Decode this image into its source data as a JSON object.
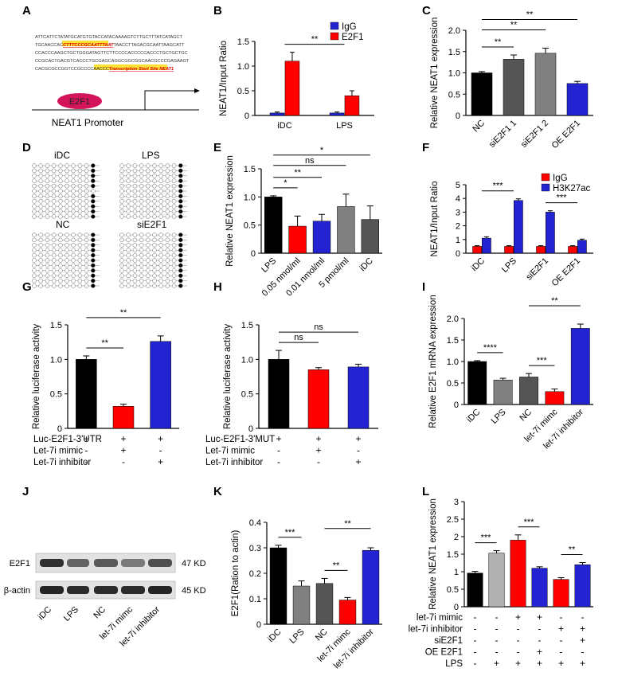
{
  "colors": {
    "black": "#000000",
    "red": "#ff0000",
    "blue": "#2323d2",
    "gray": "#808080",
    "dgray": "#555555",
    "lgray": "#b0b0b0",
    "promoter": "#d4145a",
    "highlight": "#ffe135"
  },
  "panelA": {
    "seq": [
      "ATTCATTCTATATGCATGTGTACCATACAAAAGTCTTGCTTTATCATAGCT",
      "TGCAACCAC|CTTTCCCGCAATTTAAT|TAACCTTAGACGCAATTAAGCATT",
      "CCACCCAAGCTGCTGGGATAGTTCTTCCCCACCCCCACCCTGCTGCTGC",
      "CCGCACTGACGTCACCCTGCGAGCAGGCGGCGGCAACGCCCGAGAAGT",
      "CACGCGCCGGTCCGCCCCAACCC|Transcription Start Site NEAT1|"
    ],
    "tf_label": "E2F1",
    "promoter_label": "NEAT1 Promoter"
  },
  "panelD": {
    "labels": [
      "iDC",
      "LPS",
      "NC",
      "siE2F1"
    ]
  },
  "panelJ": {
    "bands": [
      {
        "name": "E2F1",
        "size": "47 KD"
      },
      {
        "name": "β-actin",
        "size": "45 KD"
      }
    ],
    "lanes": [
      "iDC",
      "LPS",
      "NC",
      "let-7i mimc",
      "let-7i inhibitor"
    ]
  },
  "chart_data": [
    {
      "id": "A",
      "type": "diagram",
      "title": "A"
    },
    {
      "id": "B",
      "type": "bar",
      "ylabel": "NEAT1/Input Ratio",
      "categories": [
        "iDC",
        "LPS"
      ],
      "ylim": [
        0,
        1.5
      ],
      "ticks": [
        0,
        0.5,
        1.0,
        1.5
      ],
      "series": [
        {
          "name": "IgG",
          "color": "#2323d2",
          "values": [
            0.05,
            0.05
          ],
          "errors": [
            0.02,
            0.02
          ]
        },
        {
          "name": "E2F1",
          "color": "#ff0000",
          "values": [
            1.1,
            0.4
          ],
          "errors": [
            0.18,
            0.1
          ]
        }
      ],
      "sig": [
        {
          "from": 0,
          "to": 1,
          "label": "**"
        }
      ]
    },
    {
      "id": "C",
      "type": "bar",
      "ylabel": "Relative NEAT1 expression",
      "categories": [
        "NC",
        "siE2F1 1",
        "siE2F1 2",
        "OE E2F1"
      ],
      "ylim": [
        0,
        2.0
      ],
      "ticks": [
        0,
        0.5,
        1.0,
        1.5,
        2.0
      ],
      "values": [
        1.0,
        1.32,
        1.46,
        0.75
      ],
      "errors": [
        0.03,
        0.1,
        0.12,
        0.05
      ],
      "colors": [
        "#000000",
        "#555555",
        "#808080",
        "#2323d2"
      ],
      "sig": [
        {
          "from": 0,
          "to": 1,
          "label": "**"
        },
        {
          "from": 0,
          "to": 2,
          "label": "**"
        },
        {
          "from": 0,
          "to": 3,
          "label": "**"
        }
      ]
    },
    {
      "id": "D",
      "type": "methylation",
      "title": "D"
    },
    {
      "id": "E",
      "type": "bar",
      "ylabel": "Relative NEAT1 expression",
      "categories": [
        "LPS",
        "0.05 nmol/ml",
        "0.01 nmol/ml",
        "5 pmol/ml",
        "iDC"
      ],
      "ylim": [
        0,
        1.5
      ],
      "ticks": [
        0,
        0.5,
        1.0,
        1.5
      ],
      "values": [
        1.0,
        0.48,
        0.57,
        0.83,
        0.6
      ],
      "errors": [
        0.02,
        0.18,
        0.12,
        0.22,
        0.24
      ],
      "colors": [
        "#000000",
        "#ff0000",
        "#2323d2",
        "#808080",
        "#555555"
      ],
      "sig": [
        {
          "from": 0,
          "to": 1,
          "label": "*"
        },
        {
          "from": 0,
          "to": 2,
          "label": "**"
        },
        {
          "from": 0,
          "to": 3,
          "label": "ns"
        },
        {
          "from": 0,
          "to": 4,
          "label": "*"
        }
      ]
    },
    {
      "id": "F",
      "type": "bar",
      "ylabel": "NEAT1/Input Ratio",
      "categories": [
        "iDC",
        "LPS",
        "siE2F1",
        "OE E2F1"
      ],
      "ylim": [
        0,
        5
      ],
      "ticks": [
        0,
        1,
        2,
        3,
        4,
        5
      ],
      "series": [
        {
          "name": "IgG",
          "color": "#ff0000",
          "values": [
            0.5,
            0.5,
            0.5,
            0.5
          ],
          "errors": [
            0.05,
            0.05,
            0.05,
            0.05
          ]
        },
        {
          "name": "H3K27ac",
          "color": "#2323d2",
          "values": [
            1.1,
            3.85,
            3.0,
            0.95
          ],
          "errors": [
            0.1,
            0.12,
            0.1,
            0.08
          ]
        }
      ],
      "sig": [
        {
          "from": 0,
          "to": 1,
          "label": "***"
        },
        {
          "from": 2,
          "to": 3,
          "label": "***"
        }
      ]
    },
    {
      "id": "G",
      "type": "bar",
      "ylabel": "Relative luciferase activity",
      "categories": [
        "1",
        "2",
        "3"
      ],
      "ylim": [
        0,
        1.5
      ],
      "ticks": [
        0,
        0.5,
        1.0,
        1.5
      ],
      "values": [
        1.0,
        0.32,
        1.26
      ],
      "errors": [
        0.05,
        0.03,
        0.08
      ],
      "colors": [
        "#000000",
        "#ff0000",
        "#2323d2"
      ],
      "sig": [
        {
          "from": 0,
          "to": 1,
          "label": "**"
        },
        {
          "from": 0,
          "to": 2,
          "label": "**"
        }
      ],
      "table": {
        "rows": [
          {
            "label": "Luc-E2F1-3'UTR",
            "vals": [
              "+",
              "+",
              "+"
            ]
          },
          {
            "label": "Let-7i mimic",
            "vals": [
              "-",
              "+",
              "-"
            ]
          },
          {
            "label": "Let-7i inhibitor",
            "vals": [
              "-",
              "-",
              "+"
            ]
          }
        ]
      }
    },
    {
      "id": "H",
      "type": "bar",
      "ylabel": "Relative luciferase activity",
      "categories": [
        "1",
        "2",
        "3"
      ],
      "ylim": [
        0,
        1.5
      ],
      "ticks": [
        0,
        0.5,
        1.0,
        1.5
      ],
      "values": [
        1.0,
        0.85,
        0.89
      ],
      "errors": [
        0.13,
        0.03,
        0.04
      ],
      "colors": [
        "#000000",
        "#ff0000",
        "#2323d2"
      ],
      "sig": [
        {
          "from": 0,
          "to": 1,
          "label": "ns"
        },
        {
          "from": 0,
          "to": 2,
          "label": "ns"
        }
      ],
      "table": {
        "rows": [
          {
            "label": "Luc-E2F1-3'MUT",
            "vals": [
              "+",
              "+",
              "+"
            ]
          },
          {
            "label": "Let-7i mimic",
            "vals": [
              "-",
              "+",
              "-"
            ]
          },
          {
            "label": "Let-7i inhibitor",
            "vals": [
              "-",
              "-",
              "+"
            ]
          }
        ]
      }
    },
    {
      "id": "I",
      "type": "bar",
      "ylabel": "Relative E2F1 mRNA expression",
      "categories": [
        "iDC",
        "LPS",
        "NC",
        "let-7i mimc",
        "let-7i inhibitor"
      ],
      "ylim": [
        0,
        2.0
      ],
      "ticks": [
        0,
        0.5,
        1.0,
        1.5,
        2.0
      ],
      "values": [
        1.0,
        0.57,
        0.64,
        0.3,
        1.77
      ],
      "errors": [
        0.02,
        0.04,
        0.08,
        0.06,
        0.1
      ],
      "colors": [
        "#000000",
        "#808080",
        "#555555",
        "#ff0000",
        "#2323d2"
      ],
      "sig": [
        {
          "from": 0,
          "to": 1,
          "label": "****"
        },
        {
          "from": 2,
          "to": 3,
          "label": "***"
        },
        {
          "from": 2,
          "to": 4,
          "label": "**"
        }
      ]
    },
    {
      "id": "J",
      "type": "blot",
      "title": "J"
    },
    {
      "id": "K",
      "type": "bar",
      "ylabel": "E2F1(Ration to actin)",
      "categories": [
        "iDC",
        "LPS",
        "NC",
        "let-7i mimc",
        "let-7i inhibitor"
      ],
      "ylim": [
        0,
        0.4
      ],
      "ticks": [
        0,
        0.1,
        0.2,
        0.3,
        0.4
      ],
      "values": [
        0.3,
        0.15,
        0.16,
        0.095,
        0.29
      ],
      "errors": [
        0.01,
        0.02,
        0.02,
        0.01,
        0.01
      ],
      "colors": [
        "#000000",
        "#808080",
        "#555555",
        "#ff0000",
        "#2323d2"
      ],
      "sig": [
        {
          "from": 0,
          "to": 1,
          "label": "***"
        },
        {
          "from": 2,
          "to": 3,
          "label": "**"
        },
        {
          "from": 2,
          "to": 4,
          "label": "**"
        }
      ]
    },
    {
      "id": "L",
      "type": "bar",
      "ylabel": "Relative NEAT1 expression",
      "categories": [
        "1",
        "2",
        "3",
        "4",
        "5",
        "6"
      ],
      "ylim": [
        0,
        3.0
      ],
      "ticks": [
        0,
        0.5,
        1.0,
        1.5,
        2.0,
        2.5,
        3.0
      ],
      "values": [
        0.96,
        1.53,
        1.9,
        1.1,
        0.78,
        1.2
      ],
      "errors": [
        0.05,
        0.07,
        0.15,
        0.04,
        0.05,
        0.06
      ],
      "colors": [
        "#000000",
        "#b0b0b0",
        "#ff0000",
        "#2323d2",
        "#ff0000",
        "#2323d2"
      ],
      "sig": [
        {
          "from": 0,
          "to": 1,
          "label": "***"
        },
        {
          "from": 2,
          "to": 3,
          "label": "***"
        },
        {
          "from": 4,
          "to": 5,
          "label": "**"
        }
      ],
      "table": {
        "rows": [
          {
            "label": "let-7i mimic",
            "vals": [
              "-",
              "-",
              "+",
              "+",
              "-",
              "-"
            ]
          },
          {
            "label": "let-7i inhibitor",
            "vals": [
              "-",
              "-",
              "-",
              "-",
              "+",
              "+"
            ]
          },
          {
            "label": "siE2F1",
            "vals": [
              "-",
              "-",
              "-",
              "-",
              "-",
              "+"
            ]
          },
          {
            "label": "OE E2F1",
            "vals": [
              "-",
              "-",
              "-",
              "+",
              "-",
              "-"
            ]
          },
          {
            "label": "LPS",
            "vals": [
              "-",
              "+",
              "+",
              "+",
              "+",
              "+"
            ]
          }
        ]
      }
    }
  ]
}
